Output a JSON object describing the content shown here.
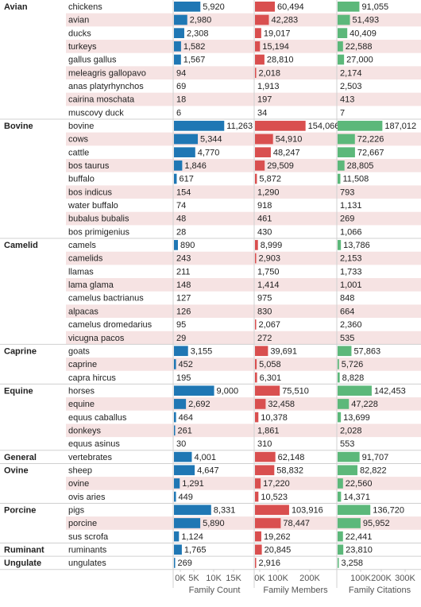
{
  "colors": {
    "family_count": "#1f77b4",
    "family_members": "#d94f4f",
    "family_citations": "#5cb87a",
    "band": "#f6e3e3",
    "grid": "#d0d0d0",
    "text": "#222222",
    "axis_text": "#555555"
  },
  "chart_data": [
    {
      "type": "bar",
      "orientation": "horizontal",
      "xlabel": "Family Count",
      "ticks": [
        "0K",
        "5K",
        "10K",
        "15K"
      ],
      "tick_values": [
        0,
        5000,
        10000,
        15000
      ],
      "xlim": [
        0,
        17800
      ]
    },
    {
      "type": "bar",
      "orientation": "horizontal",
      "xlabel": "Family Members",
      "ticks": [
        "0K",
        "100K",
        "200K"
      ],
      "tick_values": [
        0,
        100000,
        200000
      ],
      "xlim": [
        0,
        242000
      ]
    },
    {
      "type": "bar",
      "orientation": "horizontal",
      "xlabel": "Family Citations",
      "ticks": [
        "100K",
        "200K",
        "300K"
      ],
      "tick_values": [
        100000,
        200000,
        300000
      ],
      "xlim": [
        0,
        345000
      ]
    }
  ],
  "groups": [
    {
      "name": "Avian",
      "rows": [
        {
          "label": "chickens",
          "count": 5920,
          "members": 60494,
          "citations": 91055
        },
        {
          "label": "avian",
          "count": 2980,
          "members": 42283,
          "citations": 51493
        },
        {
          "label": "ducks",
          "count": 2308,
          "members": 19017,
          "citations": 40409
        },
        {
          "label": "turkeys",
          "count": 1582,
          "members": 15194,
          "citations": 22588
        },
        {
          "label": "gallus gallus",
          "count": 1567,
          "members": 28810,
          "citations": 27000
        },
        {
          "label": "meleagris gallopavo",
          "count": 94,
          "members": 2018,
          "citations": 2174
        },
        {
          "label": "anas platyrhynchos",
          "count": 69,
          "members": 1913,
          "citations": 2503
        },
        {
          "label": "cairina moschata",
          "count": 18,
          "members": 197,
          "citations": 413
        },
        {
          "label": "muscovy duck",
          "count": 6,
          "members": 34,
          "citations": 7
        }
      ]
    },
    {
      "name": "Bovine",
      "rows": [
        {
          "label": "bovine",
          "count": 11263,
          "members": 154066,
          "citations": 187012
        },
        {
          "label": "cows",
          "count": 5344,
          "members": 54910,
          "citations": 72226
        },
        {
          "label": "cattle",
          "count": 4770,
          "members": 48247,
          "citations": 72667
        },
        {
          "label": "bos taurus",
          "count": 1846,
          "members": 29509,
          "citations": 28805
        },
        {
          "label": "buffalo",
          "count": 617,
          "members": 5872,
          "citations": 11508
        },
        {
          "label": "bos indicus",
          "count": 154,
          "members": 1290,
          "citations": 793
        },
        {
          "label": "water buffalo",
          "count": 74,
          "members": 918,
          "citations": 1131
        },
        {
          "label": "bubalus bubalis",
          "count": 48,
          "members": 461,
          "citations": 269
        },
        {
          "label": "bos primigenius",
          "count": 28,
          "members": 430,
          "citations": 1066
        }
      ]
    },
    {
      "name": "Camelid",
      "rows": [
        {
          "label": "camels",
          "count": 890,
          "members": 8999,
          "citations": 13786
        },
        {
          "label": "camelids",
          "count": 243,
          "members": 2903,
          "citations": 2153
        },
        {
          "label": "llamas",
          "count": 211,
          "members": 1750,
          "citations": 1733
        },
        {
          "label": "lama glama",
          "count": 148,
          "members": 1414,
          "citations": 1001
        },
        {
          "label": "camelus bactrianus",
          "count": 127,
          "members": 975,
          "citations": 848
        },
        {
          "label": "alpacas",
          "count": 126,
          "members": 830,
          "citations": 664
        },
        {
          "label": "camelus dromedarius",
          "count": 95,
          "members": 2067,
          "citations": 2360
        },
        {
          "label": "vicugna pacos",
          "count": 29,
          "members": 272,
          "citations": 535
        }
      ]
    },
    {
      "name": "Caprine",
      "rows": [
        {
          "label": "goats",
          "count": 3155,
          "members": 39691,
          "citations": 57863
        },
        {
          "label": "caprine",
          "count": 452,
          "members": 5058,
          "citations": 5726
        },
        {
          "label": "capra hircus",
          "count": 195,
          "members": 6301,
          "citations": 8828
        }
      ]
    },
    {
      "name": "Equine",
      "rows": [
        {
          "label": "horses",
          "count": 9000,
          "members": 75510,
          "citations": 142453
        },
        {
          "label": "equine",
          "count": 2692,
          "members": 32458,
          "citations": 47228
        },
        {
          "label": "equus caballus",
          "count": 464,
          "members": 10378,
          "citations": 13699
        },
        {
          "label": "donkeys",
          "count": 261,
          "members": 1861,
          "citations": 2028
        },
        {
          "label": "equus asinus",
          "count": 30,
          "members": 310,
          "citations": 553
        }
      ]
    },
    {
      "name": "General",
      "rows": [
        {
          "label": "vertebrates",
          "count": 4001,
          "members": 62148,
          "citations": 91707
        }
      ]
    },
    {
      "name": "Ovine",
      "rows": [
        {
          "label": "sheep",
          "count": 4647,
          "members": 58832,
          "citations": 82822
        },
        {
          "label": "ovine",
          "count": 1291,
          "members": 17220,
          "citations": 22560
        },
        {
          "label": "ovis aries",
          "count": 449,
          "members": 10523,
          "citations": 14371
        }
      ]
    },
    {
      "name": "Porcine",
      "rows": [
        {
          "label": "pigs",
          "count": 8331,
          "members": 103916,
          "citations": 136720
        },
        {
          "label": "porcine",
          "count": 5890,
          "members": 78447,
          "citations": 95952
        },
        {
          "label": "sus scrofa",
          "count": 1124,
          "members": 19262,
          "citations": 22441
        }
      ]
    },
    {
      "name": "Ruminant",
      "rows": [
        {
          "label": "ruminants",
          "count": 1765,
          "members": 20845,
          "citations": 23810
        }
      ]
    },
    {
      "name": "Ungulate",
      "rows": [
        {
          "label": "ungulates",
          "count": 269,
          "members": 2916,
          "citations": 3258
        }
      ]
    }
  ]
}
